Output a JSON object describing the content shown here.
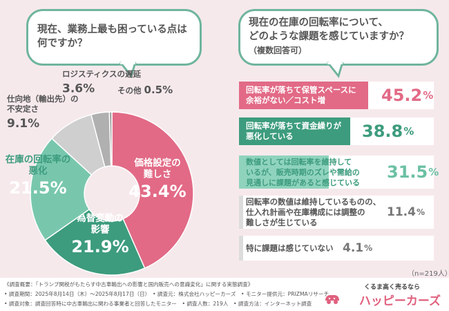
{
  "left_question": "現在、業務上最も困っている点は\n何ですか？",
  "right_question": "現在の在庫の回転率について、\nどのような課題を感じていますか？",
  "right_note": "（複数回答可）",
  "chart_data": [
    {
      "type": "pie",
      "slices": [
        {
          "label": "価格設定の\n難しさ",
          "value": 43.4,
          "color": "#e26a86"
        },
        {
          "label": "為替変動の\n影響",
          "value": 21.9,
          "color": "#3d9c7d"
        },
        {
          "label": "在庫の回転率の\n悪化",
          "value": 21.5,
          "color": "#78c7ad"
        },
        {
          "label": "仕向地（輸出先）の\n不安定さ",
          "value": 9.1,
          "color": "#cfcfcf"
        },
        {
          "label": "ロジスティクスの遅延",
          "value": 3.6,
          "color": "#b0b0b0"
        },
        {
          "label": "その他",
          "value": 0.5,
          "color": "#9a9a9a"
        }
      ]
    },
    {
      "type": "bar",
      "orientation": "horizontal",
      "categories": [
        "回転率が落ちて保管スペースに\n余裕がない／コスト増",
        "回転率が落ちて資金繰りが\n悪化している",
        "数値としては回転率を維持して\nいるが、販売時期のズレや需給の\n見通しに課題があると感じている",
        "回転率の数値は維持しているものの、\n仕入れ計画や在庫構成には調整の\n難しさが生じている",
        "特に課題は感じていない"
      ],
      "values": [
        45.2,
        38.8,
        31.5,
        11.4,
        4.1
      ],
      "colors": [
        "#e26a86",
        "#3d9c7d",
        "#8fd3bd",
        "#dcdcdc",
        "#dcdcdc"
      ],
      "value_colors": [
        "#e26a86",
        "#3d9c7d",
        "#6cc0a4",
        "#777777",
        "#777777"
      ],
      "label_colors": [
        "#ffffff",
        "#ffffff",
        "#3d9c7d",
        "#555555",
        "#555555"
      ],
      "unit": "%"
    }
  ],
  "sample_size": "（n=219人）",
  "footer": {
    "line1": "《調査概要：「トランプ関税がもたらす中古車輸出への影響と国内販売への意識変化」に関する実態調査》",
    "line2": "• 調査期間：2025年8月14日（木）〜2025年8月17日（日）　• 調査元：株式会社ハッピーカーズ　• モニター提供元：PRIZMAリサーチ",
    "line3": "• 調査対象：調査回答時に中古車輸出に関わる事業者と回答したモニター　• 調査人数：219人　• 調査方法：インターネット調査"
  },
  "logo": {
    "tagline": "くるま高く売るなら",
    "name": "ハッピーカーズ"
  }
}
